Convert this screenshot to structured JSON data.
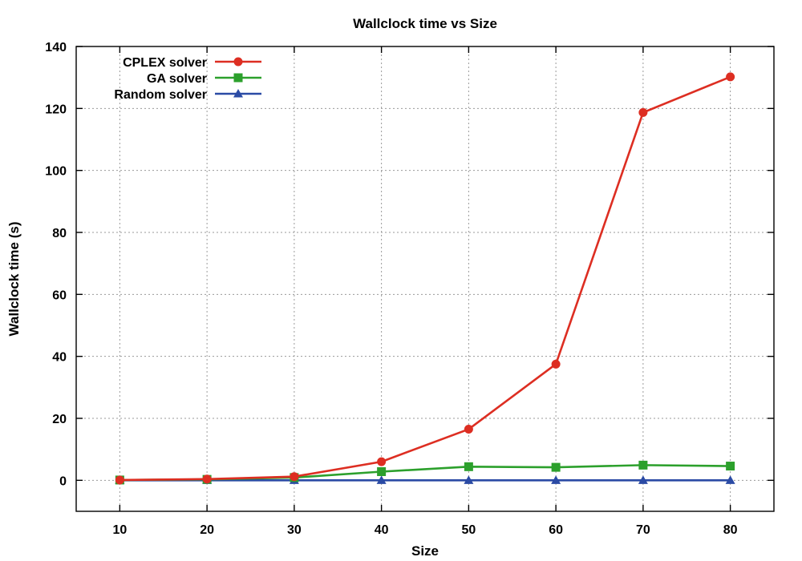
{
  "chart_data": {
    "type": "line",
    "title": "Wallclock time vs Size",
    "xlabel": "Size",
    "ylabel": "Wallclock time (s)",
    "xlim": [
      5,
      85
    ],
    "ylim": [
      -10,
      140
    ],
    "x_ticks": [
      10,
      20,
      30,
      40,
      50,
      60,
      70,
      80
    ],
    "y_ticks": [
      0,
      20,
      40,
      60,
      80,
      100,
      120,
      140
    ],
    "grid": true,
    "legend_position": "top-left",
    "x": [
      10,
      20,
      30,
      40,
      50,
      60,
      70,
      80
    ],
    "series": [
      {
        "name": "CPLEX solver",
        "color": "#dd2e22",
        "marker": "circle",
        "values": [
          0.1,
          0.4,
          1.2,
          6.0,
          16.5,
          37.5,
          118.7,
          130.2
        ]
      },
      {
        "name": "GA solver",
        "color": "#2ca02c",
        "marker": "square",
        "values": [
          0.1,
          0.3,
          0.9,
          2.8,
          4.4,
          4.2,
          4.9,
          4.6
        ]
      },
      {
        "name": "Random solver",
        "color": "#2b4ba5",
        "marker": "triangle",
        "values": [
          0.0,
          0.0,
          0.0,
          0.0,
          0.0,
          0.0,
          0.0,
          0.0
        ]
      }
    ]
  }
}
